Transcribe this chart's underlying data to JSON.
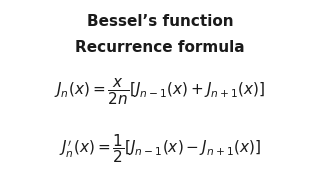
{
  "title_line1": "Bessel’s function",
  "title_line2": "Recurrence formula",
  "formula1": "$J_n(x) = \\dfrac{x}{2n}\\left[J_{n-1}(x) + J_{n+1}(x)\\right]$",
  "formula2": "$J^{\\prime}_n(x) = \\dfrac{1}{2}\\left[J_{n-1}(x) - J_{n+1}(x)\\right]$",
  "bg_color": "#ffffff",
  "text_color": "#1a1a1a",
  "title_fontsize": 11,
  "formula_fontsize": 11
}
